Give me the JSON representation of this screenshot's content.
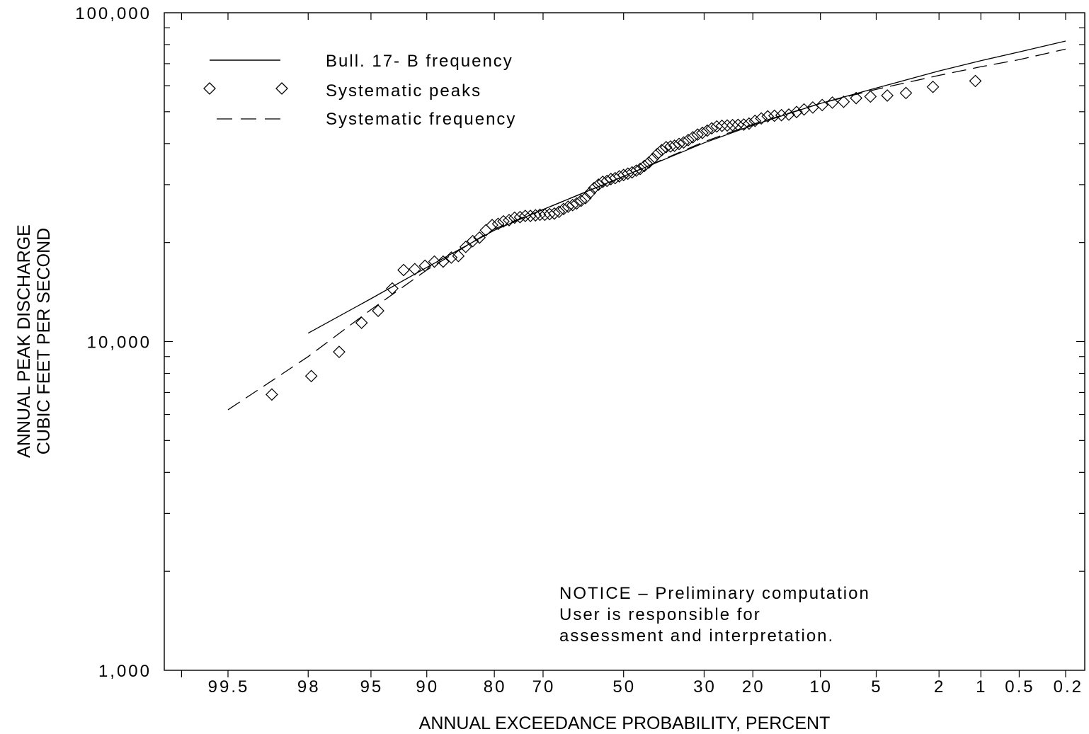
{
  "chart_data": {
    "type": "scatter",
    "title": "",
    "xlabel": "ANNUAL EXCEEDANCE PROBABILITY, PERCENT",
    "ylabel_lines": [
      "ANNUAL PEAK DISCHARGE",
      "CUBIC FEET PER SECOND"
    ],
    "x_scale": "normal-probability, reversed (99.5 on left, 0.2 on right)",
    "y_scale": "log",
    "ylim": [
      1000,
      100000
    ],
    "grid": false,
    "legend_position": "top-left",
    "x_tick_labels": [
      "99.5",
      "98",
      "95",
      "90",
      "80",
      "70",
      "50",
      "30",
      "20",
      "10",
      "5",
      "2",
      "1",
      "0.5",
      "0.2"
    ],
    "y_tick_labels": [
      {
        "value": 100000,
        "label": "100,000"
      },
      {
        "value": 10000,
        "label": "10,000"
      },
      {
        "value": 1000,
        "label": "1,000"
      }
    ],
    "series": [
      {
        "name": "Bull. 17- B frequency",
        "style": "solid",
        "points": [
          {
            "x": 98,
            "y": 10600
          },
          {
            "x": 95,
            "y": 13500
          },
          {
            "x": 90,
            "y": 16800
          },
          {
            "x": 80,
            "y": 21800
          },
          {
            "x": 70,
            "y": 25200
          },
          {
            "x": 50,
            "y": 31800
          },
          {
            "x": 30,
            "y": 40200
          },
          {
            "x": 20,
            "y": 45500
          },
          {
            "x": 10,
            "y": 53000
          },
          {
            "x": 5,
            "y": 59000
          },
          {
            "x": 2,
            "y": 66500
          },
          {
            "x": 1,
            "y": 71500
          },
          {
            "x": 0.5,
            "y": 76000
          },
          {
            "x": 0.2,
            "y": 82000
          }
        ]
      },
      {
        "name": "Systematic peaks",
        "style": "diamond",
        "points": [
          {
            "x": 98.9,
            "y": 6900
          },
          {
            "x": 97.9,
            "y": 7850
          },
          {
            "x": 96.8,
            "y": 9300
          },
          {
            "x": 95.6,
            "y": 11400
          },
          {
            "x": 94.5,
            "y": 12400
          },
          {
            "x": 93.4,
            "y": 14500
          },
          {
            "x": 92.4,
            "y": 16500
          },
          {
            "x": 91.3,
            "y": 16600
          },
          {
            "x": 90.2,
            "y": 17000
          },
          {
            "x": 89.1,
            "y": 17500
          },
          {
            "x": 88.0,
            "y": 17500
          },
          {
            "x": 86.9,
            "y": 18000
          },
          {
            "x": 85.9,
            "y": 18200
          },
          {
            "x": 84.8,
            "y": 19400
          },
          {
            "x": 83.7,
            "y": 20200
          },
          {
            "x": 82.6,
            "y": 20700
          },
          {
            "x": 81.5,
            "y": 21800
          },
          {
            "x": 80.4,
            "y": 22600
          },
          {
            "x": 79.3,
            "y": 22800
          },
          {
            "x": 78.3,
            "y": 23200
          },
          {
            "x": 77.2,
            "y": 23400
          },
          {
            "x": 76.1,
            "y": 23800
          },
          {
            "x": 75.0,
            "y": 23900
          },
          {
            "x": 73.9,
            "y": 24100
          },
          {
            "x": 72.8,
            "y": 24100
          },
          {
            "x": 71.7,
            "y": 24200
          },
          {
            "x": 70.7,
            "y": 24300
          },
          {
            "x": 69.6,
            "y": 24300
          },
          {
            "x": 68.5,
            "y": 24400
          },
          {
            "x": 67.4,
            "y": 24500
          },
          {
            "x": 66.3,
            "y": 24800
          },
          {
            "x": 65.2,
            "y": 25300
          },
          {
            "x": 64.1,
            "y": 25700
          },
          {
            "x": 63.0,
            "y": 26000
          },
          {
            "x": 62.0,
            "y": 26300
          },
          {
            "x": 60.9,
            "y": 26800
          },
          {
            "x": 59.8,
            "y": 27300
          },
          {
            "x": 58.7,
            "y": 28300
          },
          {
            "x": 57.6,
            "y": 29300
          },
          {
            "x": 56.5,
            "y": 30000
          },
          {
            "x": 55.4,
            "y": 30600
          },
          {
            "x": 54.3,
            "y": 30800
          },
          {
            "x": 53.3,
            "y": 31200
          },
          {
            "x": 52.2,
            "y": 31400
          },
          {
            "x": 51.1,
            "y": 31800
          },
          {
            "x": 50.0,
            "y": 32100
          },
          {
            "x": 48.9,
            "y": 32400
          },
          {
            "x": 47.8,
            "y": 32700
          },
          {
            "x": 46.7,
            "y": 33100
          },
          {
            "x": 45.7,
            "y": 33500
          },
          {
            "x": 44.6,
            "y": 34200
          },
          {
            "x": 43.5,
            "y": 35000
          },
          {
            "x": 42.4,
            "y": 36000
          },
          {
            "x": 41.3,
            "y": 37200
          },
          {
            "x": 40.2,
            "y": 38200
          },
          {
            "x": 39.1,
            "y": 39000
          },
          {
            "x": 38.0,
            "y": 39200
          },
          {
            "x": 37.0,
            "y": 39400
          },
          {
            "x": 35.9,
            "y": 39900
          },
          {
            "x": 34.8,
            "y": 40300
          },
          {
            "x": 33.7,
            "y": 41000
          },
          {
            "x": 32.6,
            "y": 41800
          },
          {
            "x": 31.5,
            "y": 42600
          },
          {
            "x": 30.4,
            "y": 43100
          },
          {
            "x": 29.3,
            "y": 43800
          },
          {
            "x": 28.3,
            "y": 44500
          },
          {
            "x": 27.2,
            "y": 45100
          },
          {
            "x": 26.1,
            "y": 45300
          },
          {
            "x": 25.0,
            "y": 45400
          },
          {
            "x": 23.9,
            "y": 45500
          },
          {
            "x": 22.8,
            "y": 45600
          },
          {
            "x": 21.7,
            "y": 45700
          },
          {
            "x": 20.7,
            "y": 46000
          },
          {
            "x": 19.6,
            "y": 46900
          },
          {
            "x": 18.5,
            "y": 47700
          },
          {
            "x": 17.4,
            "y": 48400
          },
          {
            "x": 16.3,
            "y": 48600
          },
          {
            "x": 15.2,
            "y": 48800
          },
          {
            "x": 14.1,
            "y": 49000
          },
          {
            "x": 13.0,
            "y": 49900
          },
          {
            "x": 12.0,
            "y": 50800
          },
          {
            "x": 10.9,
            "y": 51500
          },
          {
            "x": 9.8,
            "y": 52400
          },
          {
            "x": 8.7,
            "y": 53300
          },
          {
            "x": 7.6,
            "y": 53600
          },
          {
            "x": 6.5,
            "y": 55000
          },
          {
            "x": 5.4,
            "y": 55600
          },
          {
            "x": 4.3,
            "y": 56000
          },
          {
            "x": 3.3,
            "y": 57000
          },
          {
            "x": 2.2,
            "y": 59500
          },
          {
            "x": 1.1,
            "y": 62000
          }
        ]
      },
      {
        "name": "Systematic frequency",
        "style": "dashed",
        "points": [
          {
            "x": 99.5,
            "y": 6200
          },
          {
            "x": 99,
            "y": 7400
          },
          {
            "x": 98,
            "y": 9000
          },
          {
            "x": 95,
            "y": 12500
          },
          {
            "x": 90,
            "y": 16500
          },
          {
            "x": 80,
            "y": 22000
          },
          {
            "x": 70,
            "y": 25200
          },
          {
            "x": 50,
            "y": 31800
          },
          {
            "x": 30,
            "y": 40500
          },
          {
            "x": 20,
            "y": 45800
          },
          {
            "x": 10,
            "y": 53000
          },
          {
            "x": 5,
            "y": 58500
          },
          {
            "x": 2,
            "y": 64500
          },
          {
            "x": 1,
            "y": 68500
          },
          {
            "x": 0.5,
            "y": 72000
          },
          {
            "x": 0.2,
            "y": 77500
          }
        ]
      }
    ]
  },
  "notice": {
    "line1": "NOTICE –  Preliminary computation",
    "line2": "User is responsible for",
    "line3": "assessment and interpretation."
  }
}
